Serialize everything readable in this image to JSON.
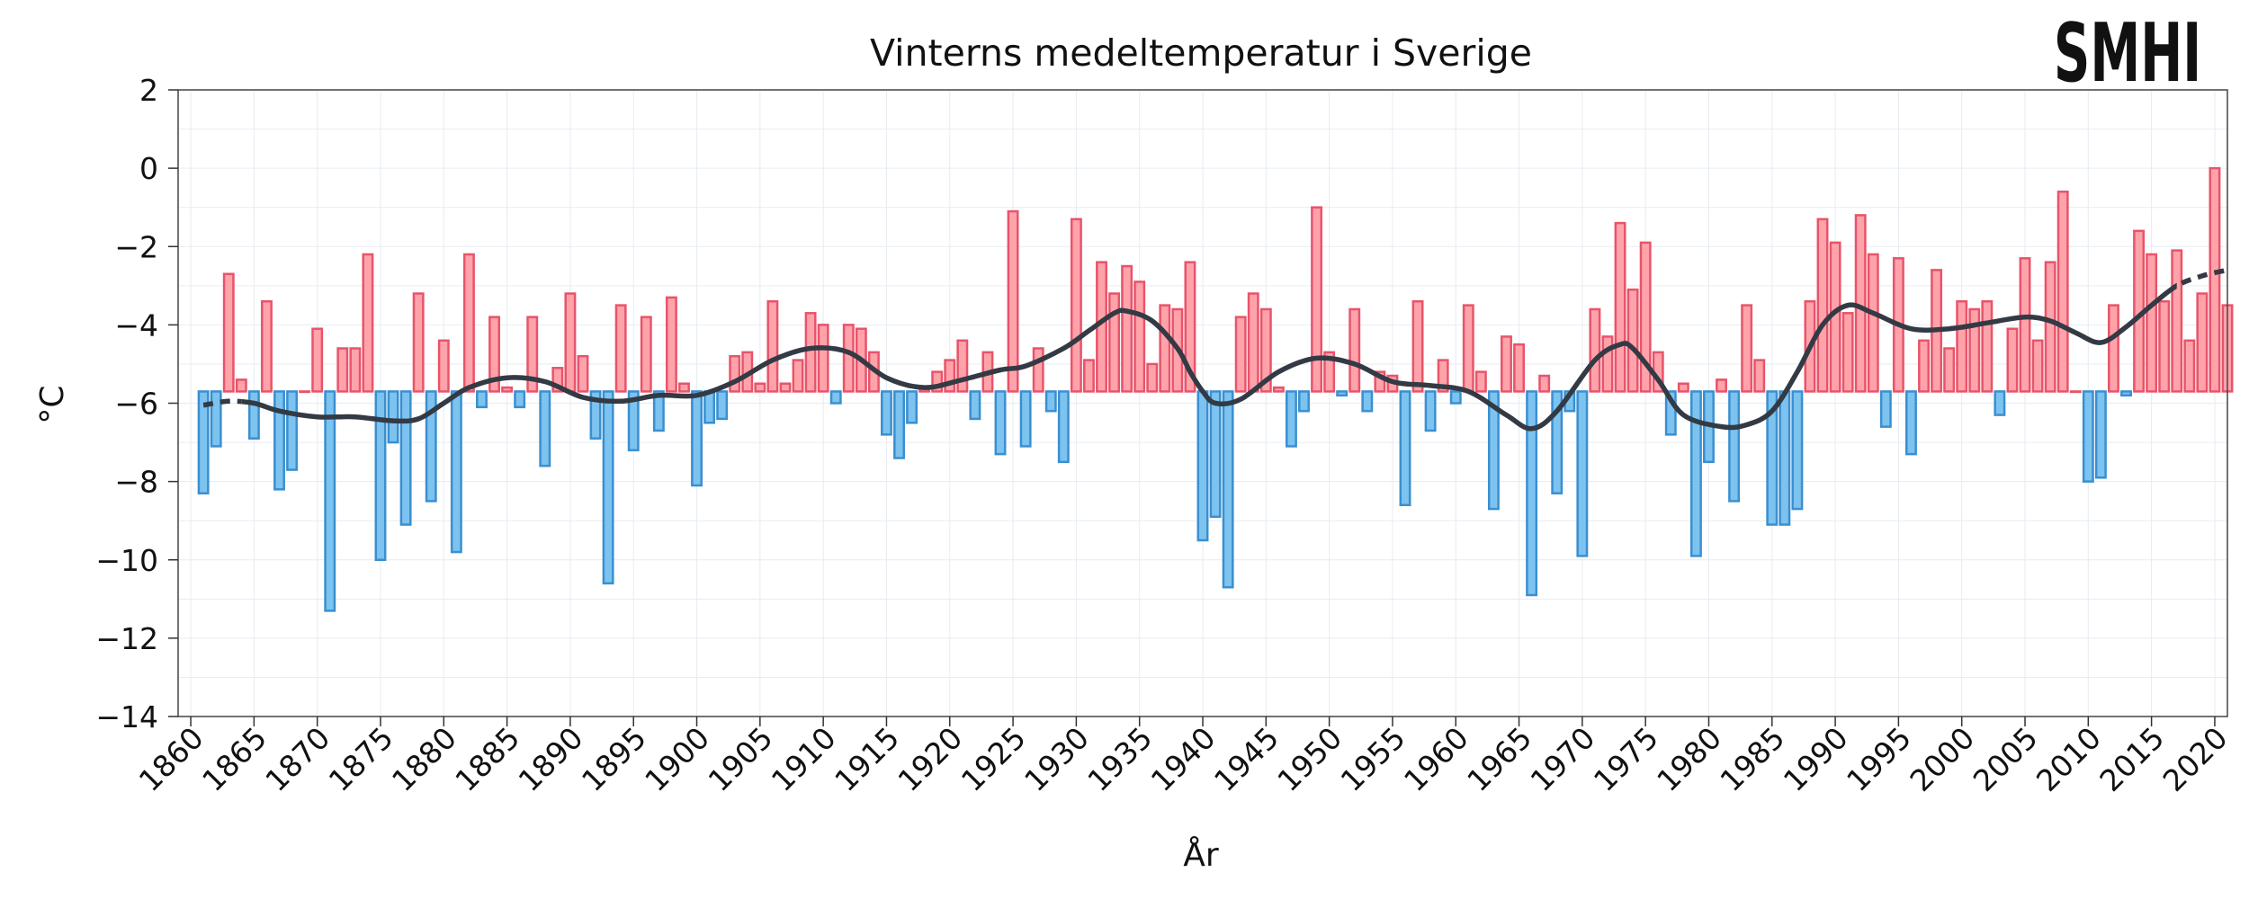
{
  "chart_data": {
    "type": "bar",
    "title": "Vinterns medeltemperatur i Sverige",
    "xlabel": "År",
    "ylabel": "°C",
    "logo": "SMHI",
    "xlim": [
      1859,
      2021
    ],
    "ylim": [
      -14,
      2
    ],
    "xticks": [
      1860,
      1865,
      1870,
      1875,
      1880,
      1885,
      1890,
      1895,
      1900,
      1905,
      1910,
      1915,
      1920,
      1925,
      1930,
      1935,
      1940,
      1945,
      1950,
      1955,
      1960,
      1965,
      1970,
      1975,
      1980,
      1985,
      1990,
      1995,
      2000,
      2005,
      2010,
      2015,
      2020
    ],
    "xtick_labels": [
      "1860",
      "1865",
      "1870",
      "1875",
      "1880",
      "1885",
      "1890",
      "1895",
      "1900",
      "1905",
      "1910",
      "1915",
      "1920",
      "1925",
      "1930",
      "1935",
      "1940",
      "1945",
      "1950",
      "1955",
      "1960",
      "1965",
      "1970",
      "1975",
      "1980",
      "1985",
      "1990",
      "1995",
      "2000",
      "2005",
      "2010",
      "2015",
      "2020"
    ],
    "yticks": [
      2,
      0,
      -2,
      -4,
      -6,
      -8,
      -10,
      -12,
      -14
    ],
    "ytick_labels": [
      "2",
      "0",
      "−2",
      "−4",
      "−6",
      "−8",
      "−10",
      "−12",
      "−14"
    ],
    "baseline": -5.7,
    "grid": true,
    "colors": {
      "warm_fill": "#ffa3ab",
      "warm_edge": "#e8546a",
      "cold_fill": "#7dc3ef",
      "cold_edge": "#3a8fd0",
      "trend_line": "#333a44"
    },
    "years": [
      1861,
      1862,
      1863,
      1864,
      1865,
      1866,
      1867,
      1868,
      1869,
      1870,
      1871,
      1872,
      1873,
      1874,
      1875,
      1876,
      1877,
      1878,
      1879,
      1880,
      1881,
      1882,
      1883,
      1884,
      1885,
      1886,
      1887,
      1888,
      1889,
      1890,
      1891,
      1892,
      1893,
      1894,
      1895,
      1896,
      1897,
      1898,
      1899,
      1900,
      1901,
      1902,
      1903,
      1904,
      1905,
      1906,
      1907,
      1908,
      1909,
      1910,
      1911,
      1912,
      1913,
      1914,
      1915,
      1916,
      1917,
      1918,
      1919,
      1920,
      1921,
      1922,
      1923,
      1924,
      1925,
      1926,
      1927,
      1928,
      1929,
      1930,
      1931,
      1932,
      1933,
      1934,
      1935,
      1936,
      1937,
      1938,
      1939,
      1940,
      1941,
      1942,
      1943,
      1944,
      1945,
      1946,
      1947,
      1948,
      1949,
      1950,
      1951,
      1952,
      1953,
      1954,
      1955,
      1956,
      1957,
      1958,
      1959,
      1960,
      1961,
      1962,
      1963,
      1964,
      1965,
      1966,
      1967,
      1968,
      1969,
      1970,
      1971,
      1972,
      1973,
      1974,
      1975,
      1976,
      1977,
      1978,
      1979,
      1980,
      1981,
      1982,
      1983,
      1984,
      1985,
      1986,
      1987,
      1988,
      1989,
      1990,
      1991,
      1992,
      1993,
      1994,
      1995,
      1996,
      1997,
      1998,
      1999,
      2000,
      2001,
      2002,
      2003,
      2004,
      2005,
      2006,
      2007,
      2008,
      2009,
      2010,
      2011,
      2012,
      2013,
      2014,
      2015,
      2016,
      2017,
      2018,
      2019,
      2020,
      2021
    ],
    "values": [
      -8.3,
      -7.1,
      -2.7,
      -5.4,
      -6.9,
      -3.4,
      -8.2,
      -7.7,
      -5.7,
      -4.1,
      -11.3,
      -4.6,
      -4.6,
      -2.2,
      -10.0,
      -7.0,
      -9.1,
      -3.2,
      -8.5,
      -4.4,
      -9.8,
      -2.2,
      -6.1,
      -3.8,
      -5.6,
      -6.1,
      -3.8,
      -7.6,
      -5.1,
      -3.2,
      -4.8,
      -6.9,
      -10.6,
      -3.5,
      -7.2,
      -3.8,
      -6.7,
      -3.3,
      -5.5,
      -8.1,
      -6.5,
      -6.4,
      -4.8,
      -4.7,
      -5.5,
      -3.4,
      -5.5,
      -4.9,
      -3.7,
      -4.0,
      -6.0,
      -4.0,
      -4.1,
      -4.7,
      -6.8,
      -7.4,
      -6.5,
      -5.6,
      -5.2,
      -4.9,
      -4.4,
      -6.4,
      -4.7,
      -7.3,
      -1.1,
      -7.1,
      -4.6,
      -6.2,
      -7.5,
      -1.3,
      -4.9,
      -2.4,
      -3.2,
      -2.5,
      -2.9,
      -5.0,
      -3.5,
      -3.6,
      -2.4,
      -9.5,
      -8.9,
      -10.7,
      -3.8,
      -3.2,
      -3.6,
      -5.6,
      -7.1,
      -6.2,
      -1.0,
      -4.7,
      -5.8,
      -3.6,
      -6.2,
      -5.2,
      -5.3,
      -8.6,
      -3.4,
      -6.7,
      -4.9,
      -6.0,
      -3.5,
      -5.2,
      -8.7,
      -4.3,
      -4.5,
      -10.9,
      -5.3,
      -8.3,
      -6.2,
      -9.9,
      -3.6,
      -4.3,
      -1.4,
      -3.1,
      -1.9,
      -4.7,
      -6.8,
      -5.5,
      -9.9,
      -7.5,
      -5.4,
      -8.5,
      -3.5,
      -4.9,
      -9.1,
      -9.1,
      -8.7,
      -3.4,
      -1.3,
      -1.9,
      -3.7,
      -1.2,
      -2.2,
      -6.6,
      -2.3,
      -7.3,
      -4.4,
      -2.6,
      -4.6,
      -3.4,
      -3.6,
      -3.4,
      -6.3,
      -4.1,
      -2.3,
      -4.4,
      -2.4,
      -0.6,
      -5.7,
      -8.0,
      -7.9,
      -3.5,
      -5.8,
      -1.6,
      -2.2,
      -3.4,
      -2.1,
      -4.4,
      -3.2,
      0.0,
      -3.5
    ],
    "trend": {
      "label": "",
      "years": [
        1861,
        1863,
        1865,
        1867,
        1870,
        1873,
        1876,
        1878,
        1880,
        1882,
        1885,
        1888,
        1891,
        1894,
        1897,
        1900,
        1903,
        1906,
        1909,
        1912,
        1915,
        1918,
        1921,
        1924,
        1926,
        1929,
        1931,
        1933,
        1934,
        1936,
        1938,
        1939,
        1940,
        1941,
        1943,
        1946,
        1949,
        1952,
        1955,
        1958,
        1961,
        1964,
        1966,
        1968,
        1971,
        1973,
        1974,
        1976,
        1978,
        1981,
        1983,
        1985,
        1987,
        1989,
        1991,
        1993,
        1996,
        1999,
        2002,
        2005,
        2007,
        2009,
        2011,
        2013,
        2015,
        2017,
        2019,
        2021
      ],
      "values": [
        -6.05,
        -5.95,
        -6.0,
        -6.2,
        -6.35,
        -6.35,
        -6.45,
        -6.4,
        -6.0,
        -5.6,
        -5.35,
        -5.45,
        -5.85,
        -5.95,
        -5.8,
        -5.8,
        -5.45,
        -4.9,
        -4.6,
        -4.7,
        -5.35,
        -5.6,
        -5.4,
        -5.15,
        -5.05,
        -4.6,
        -4.15,
        -3.7,
        -3.65,
        -3.9,
        -4.6,
        -5.2,
        -5.7,
        -6.0,
        -5.9,
        -5.2,
        -4.85,
        -5.0,
        -5.45,
        -5.55,
        -5.7,
        -6.3,
        -6.65,
        -6.2,
        -4.9,
        -4.5,
        -4.6,
        -5.4,
        -6.3,
        -6.6,
        -6.55,
        -6.2,
        -5.2,
        -4.0,
        -3.5,
        -3.7,
        -4.1,
        -4.1,
        -3.95,
        -3.8,
        -3.9,
        -4.2,
        -4.45,
        -4.05,
        -3.5,
        -3.0,
        -2.75,
        -2.6
      ],
      "dashed_years": [
        [
          1861,
          1864
        ],
        [
          2017,
          2021
        ]
      ]
    }
  }
}
